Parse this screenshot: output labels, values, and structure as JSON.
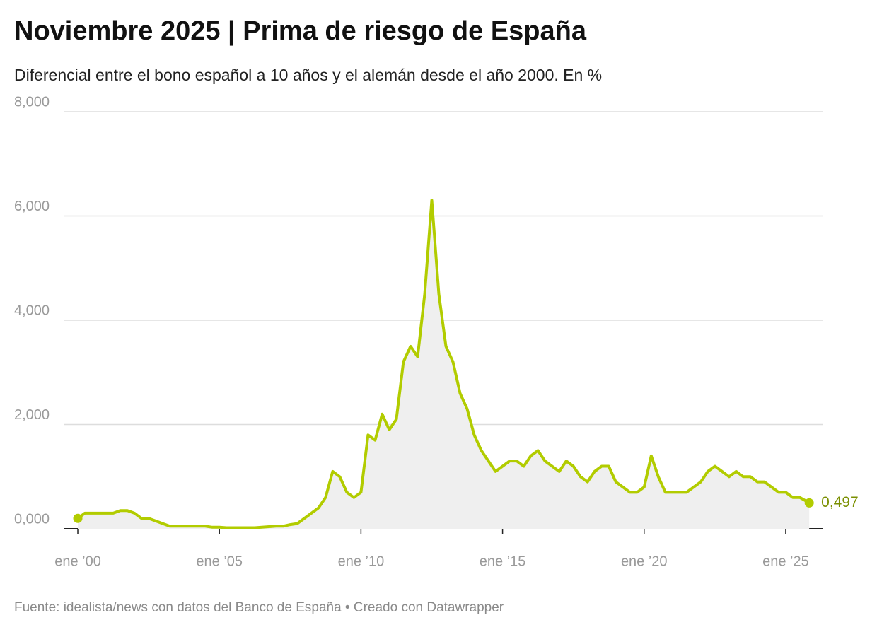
{
  "chart_data": {
    "type": "line",
    "title": "Noviembre 2025 | Prima de riesgo de España",
    "subtitle": "Diferencial entre el bono español a 10 años y el alemán desde el año 2000. En %",
    "source": "Fuente: idealista/news con datos del Banco de España • Creado con Datawrapper",
    "x": [
      2000,
      2000.25,
      2000.5,
      2000.75,
      2001,
      2001.25,
      2001.5,
      2001.75,
      2002,
      2002.25,
      2002.5,
      2002.75,
      2003,
      2003.25,
      2003.5,
      2003.75,
      2004,
      2004.25,
      2004.5,
      2004.75,
      2005,
      2005.25,
      2005.5,
      2005.75,
      2006,
      2006.25,
      2006.5,
      2006.75,
      2007,
      2007.25,
      2007.5,
      2007.75,
      2008,
      2008.25,
      2008.5,
      2008.75,
      2009,
      2009.25,
      2009.5,
      2009.75,
      2010,
      2010.25,
      2010.5,
      2010.75,
      2011,
      2011.25,
      2011.5,
      2011.75,
      2012,
      2012.25,
      2012.5,
      2012.75,
      2013,
      2013.25,
      2013.5,
      2013.75,
      2014,
      2014.25,
      2014.5,
      2014.75,
      2015,
      2015.25,
      2015.5,
      2015.75,
      2016,
      2016.25,
      2016.5,
      2016.75,
      2017,
      2017.25,
      2017.5,
      2017.75,
      2018,
      2018.25,
      2018.5,
      2018.75,
      2019,
      2019.25,
      2019.5,
      2019.75,
      2020,
      2020.25,
      2020.5,
      2020.75,
      2021,
      2021.25,
      2021.5,
      2021.75,
      2022,
      2022.25,
      2022.5,
      2022.75,
      2023,
      2023.25,
      2023.5,
      2023.75,
      2024,
      2024.25,
      2024.5,
      2024.75,
      2025,
      2025.25,
      2025.5,
      2025.83
    ],
    "series": [
      {
        "name": "Prima de riesgo",
        "color": "#b2cc00",
        "values": [
          0.2,
          0.3,
          0.3,
          0.3,
          0.3,
          0.3,
          0.35,
          0.35,
          0.3,
          0.2,
          0.2,
          0.15,
          0.1,
          0.05,
          0.05,
          0.05,
          0.05,
          0.05,
          0.05,
          0.03,
          0.03,
          0.02,
          0.02,
          0.02,
          0.02,
          0.02,
          0.03,
          0.04,
          0.05,
          0.05,
          0.08,
          0.1,
          0.2,
          0.3,
          0.4,
          0.6,
          1.1,
          1.0,
          0.7,
          0.6,
          0.7,
          1.8,
          1.7,
          2.2,
          1.9,
          2.1,
          3.2,
          3.5,
          3.3,
          4.5,
          6.3,
          4.5,
          3.5,
          3.2,
          2.6,
          2.3,
          1.8,
          1.5,
          1.3,
          1.1,
          1.2,
          1.3,
          1.3,
          1.2,
          1.4,
          1.5,
          1.3,
          1.2,
          1.1,
          1.3,
          1.2,
          1.0,
          0.9,
          1.1,
          1.2,
          1.2,
          0.9,
          0.8,
          0.7,
          0.7,
          0.8,
          1.4,
          1.0,
          0.7,
          0.7,
          0.7,
          0.7,
          0.8,
          0.9,
          1.1,
          1.2,
          1.1,
          1.0,
          1.1,
          1.0,
          1.0,
          0.9,
          0.9,
          0.8,
          0.7,
          0.7,
          0.6,
          0.6,
          0.497
        ],
        "value_labels": [
          null,
          null,
          null,
          null,
          null,
          null,
          null,
          null,
          null,
          null,
          null,
          null,
          null,
          null,
          null,
          null,
          null,
          null,
          null,
          null,
          null,
          null,
          null,
          null,
          null,
          null,
          null,
          null,
          null,
          null,
          null,
          null,
          null,
          null,
          null,
          null,
          null,
          null,
          null,
          null,
          null,
          null,
          null,
          null,
          null,
          null,
          null,
          null,
          null,
          null,
          null,
          null,
          null,
          null,
          null,
          null,
          null,
          null,
          null,
          null,
          null,
          null,
          null,
          null,
          null,
          null,
          null,
          null,
          null,
          null,
          null,
          null,
          null,
          null,
          null,
          null,
          null,
          null,
          null,
          null,
          null,
          null,
          null,
          null,
          null,
          null,
          null,
          null,
          null,
          null,
          null,
          null,
          null,
          null,
          null,
          null,
          null,
          null,
          null,
          null,
          null,
          null,
          null,
          "0,497"
        ]
      }
    ],
    "end_label_color": "#7a8f00",
    "xlim": [
      1999.5,
      2026.3
    ],
    "xticks": [
      {
        "value": 2000,
        "label": "ene ’00"
      },
      {
        "value": 2005,
        "label": "ene ’05"
      },
      {
        "value": 2010,
        "label": "ene ’10"
      },
      {
        "value": 2015,
        "label": "ene ’15"
      },
      {
        "value": 2020,
        "label": "ene ’20"
      },
      {
        "value": 2025,
        "label": "ene ’25"
      }
    ],
    "ylim": [
      0,
      8
    ],
    "yticks": [
      {
        "value": 0,
        "label": "0,000"
      },
      {
        "value": 2,
        "label": "2,000"
      },
      {
        "value": 4,
        "label": "4,000"
      },
      {
        "value": 6,
        "label": "6,000"
      },
      {
        "value": 8,
        "label": "8,000"
      }
    ],
    "grid": true
  }
}
